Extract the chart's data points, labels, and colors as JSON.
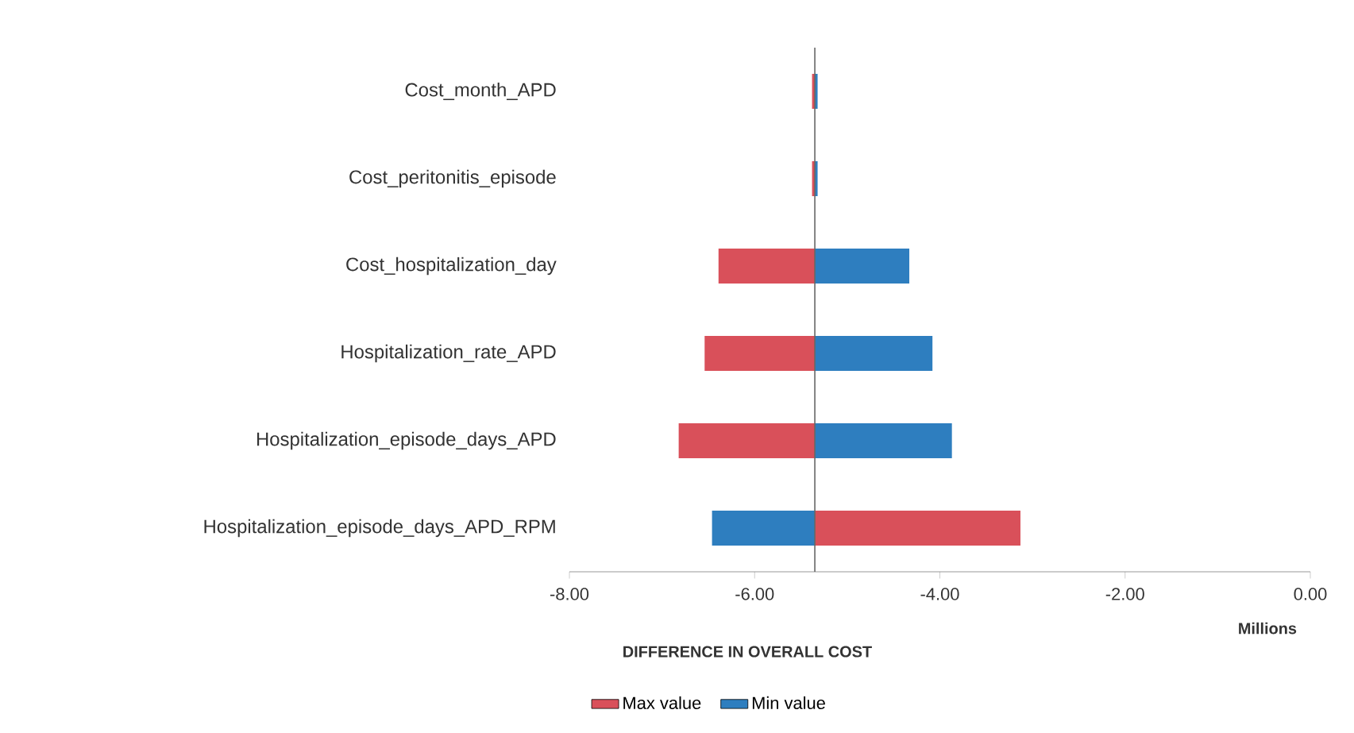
{
  "chart_data": {
    "type": "bar",
    "orientation": "horizontal",
    "xlabel": "DIFFERENCE IN OVERALL COST",
    "categories": [
      "Cost_month_APD",
      "Cost_peritonitis_episode",
      "Cost_hospitalization_day",
      "Hospitalization_rate_APD",
      "Hospitalization_episode_days_APD",
      "Hospitalization_episode_days_APD_RPM"
    ],
    "series": [
      {
        "name": "Max value",
        "color": "#d9505a",
        "base": [
          -5.35,
          -5.35,
          -5.35,
          -5.35,
          -5.35,
          -5.35
        ],
        "values": [
          -0.03,
          -0.03,
          -1.04,
          -1.19,
          -1.47,
          2.22
        ]
      },
      {
        "name": "Min value",
        "color": "#2e7ebf",
        "base": [
          -5.35,
          -5.35,
          -5.35,
          -5.35,
          -5.35,
          -5.35
        ],
        "values": [
          0.03,
          0.03,
          1.02,
          1.27,
          1.48,
          -1.11
        ]
      }
    ],
    "xlim": [
      -8,
      0
    ],
    "xticks": [
      {
        "value": -8,
        "label": "-8.00"
      },
      {
        "value": -6,
        "label": "-6.00"
      },
      {
        "value": -4,
        "label": "-4.00"
      },
      {
        "value": -2,
        "label": "-2.00"
      },
      {
        "value": 0,
        "label": "0.00"
      }
    ],
    "annotations": [
      "Millions"
    ],
    "ref_lines": [
      {
        "axis": "x",
        "value": -5.35,
        "color": "#666666"
      }
    ],
    "legend": "bottom"
  }
}
